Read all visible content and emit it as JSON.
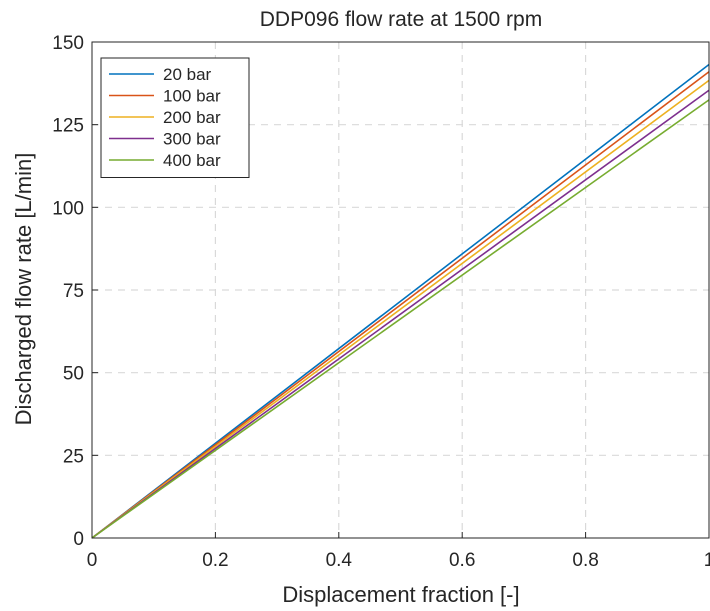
{
  "chart_data": {
    "type": "line",
    "title": "DDP096 flow rate at 1500 rpm",
    "xlabel": "Displacement fraction [-]",
    "ylabel": "Discharged flow rate [L/min]",
    "xlim": [
      0,
      1
    ],
    "ylim": [
      0,
      150
    ],
    "xticks": [
      "0",
      "0.2",
      "0.4",
      "0.6",
      "0.8",
      "1"
    ],
    "yticks": [
      "0",
      "25",
      "50",
      "75",
      "100",
      "125",
      "150"
    ],
    "grid": true,
    "legend_position": "top-left",
    "x": [
      0,
      1
    ],
    "series": [
      {
        "name": "20 bar",
        "color": "#0072BD",
        "values": [
          0,
          143.2
        ]
      },
      {
        "name": "100 bar",
        "color": "#D95319",
        "values": [
          0,
          141.0
        ]
      },
      {
        "name": "200 bar",
        "color": "#EDB120",
        "values": [
          0,
          138.4
        ]
      },
      {
        "name": "300 bar",
        "color": "#7E2F8E",
        "values": [
          0,
          135.4
        ]
      },
      {
        "name": "400 bar",
        "color": "#77AC30",
        "values": [
          0,
          132.5
        ]
      }
    ]
  }
}
